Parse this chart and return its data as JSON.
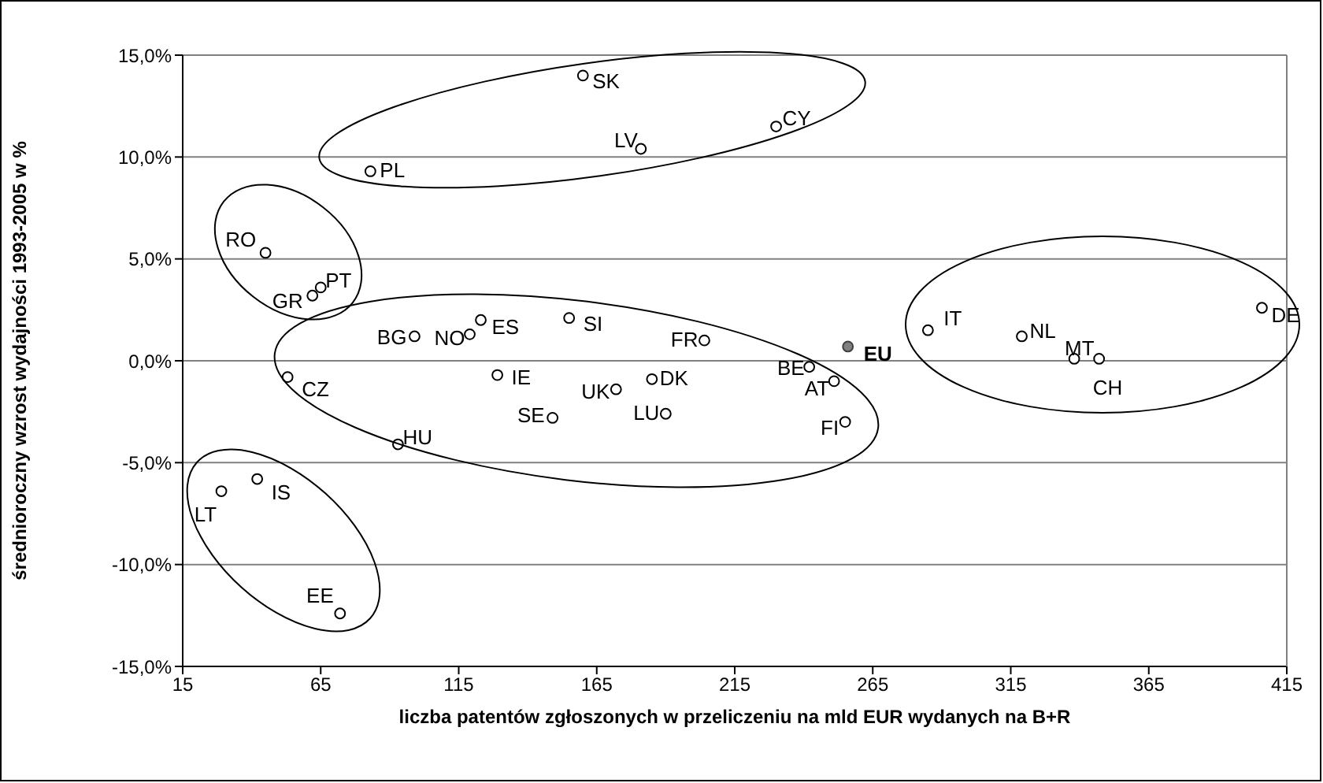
{
  "chart_data": {
    "type": "scatter",
    "xlabel": "liczba patentów zgłoszonych w przeliczeniu na mld EUR wydanych na B+R",
    "ylabel": "średnioroczny wzrost wydajności 1993-2005 w %",
    "xlim": [
      15,
      415
    ],
    "xticks": [
      15,
      65,
      115,
      165,
      215,
      265,
      315,
      365,
      415
    ],
    "ylim": [
      -15,
      15
    ],
    "yticks": [
      {
        "value": -15,
        "label": "-15,0%"
      },
      {
        "value": -10,
        "label": "-10,0%"
      },
      {
        "value": -5,
        "label": "-5,0%"
      },
      {
        "value": 0,
        "label": "0,0%"
      },
      {
        "value": 5,
        "label": "5,0%"
      },
      {
        "value": 10,
        "label": "10,0%"
      },
      {
        "value": 15,
        "label": "15,0%"
      }
    ],
    "grid": "y",
    "marker": "circle",
    "series": [
      {
        "color": "#000000",
        "x": [
          83,
          160,
          181,
          230,
          45,
          62,
          65,
          99,
          119,
          123,
          155,
          53,
          129,
          172,
          149,
          93,
          185,
          190,
          29,
          42,
          72,
          204,
          242,
          251,
          255,
          285,
          319,
          338,
          347,
          406
        ],
        "values": [
          9.3,
          14.0,
          10.4,
          11.5,
          5.3,
          3.2,
          3.6,
          1.2,
          1.3,
          2.0,
          2.1,
          -0.8,
          -0.7,
          -1.4,
          -2.8,
          -4.1,
          -0.9,
          -2.6,
          -6.4,
          -5.8,
          -12.4,
          1.0,
          -0.3,
          -1.0,
          -3.0,
          1.5,
          1.2,
          0.1,
          0.1,
          2.6
        ]
      },
      {
        "color": "#808080",
        "x": [
          256
        ],
        "values": [
          0.7
        ]
      }
    ],
    "annotations": [
      {
        "text": "PL",
        "x": 83,
        "y": 9.3
      },
      {
        "text": "SK",
        "x": 160,
        "y": 14.0
      },
      {
        "text": "LV",
        "x": 181,
        "y": 10.4
      },
      {
        "text": "CY",
        "x": 230,
        "y": 11.5
      },
      {
        "text": "RO",
        "x": 45,
        "y": 5.3
      },
      {
        "text": "GR",
        "x": 62,
        "y": 3.2
      },
      {
        "text": "PT",
        "x": 65,
        "y": 3.6
      },
      {
        "text": "BG",
        "x": 99,
        "y": 1.2
      },
      {
        "text": "NO",
        "x": 119,
        "y": 1.3
      },
      {
        "text": "ES",
        "x": 123,
        "y": 2.0
      },
      {
        "text": "SI",
        "x": 155,
        "y": 2.1
      },
      {
        "text": "CZ",
        "x": 53,
        "y": -0.8
      },
      {
        "text": "IE",
        "x": 129,
        "y": -0.7
      },
      {
        "text": "UK",
        "x": 172,
        "y": -1.4
      },
      {
        "text": "SE",
        "x": 149,
        "y": -2.8
      },
      {
        "text": "HU",
        "x": 93,
        "y": -4.1
      },
      {
        "text": "DK",
        "x": 185,
        "y": -0.9
      },
      {
        "text": "LU",
        "x": 190,
        "y": -2.6
      },
      {
        "text": "LT",
        "x": 29,
        "y": -6.4
      },
      {
        "text": "IS",
        "x": 42,
        "y": -5.8
      },
      {
        "text": "EE",
        "x": 72,
        "y": -12.4
      },
      {
        "text": "FR",
        "x": 204,
        "y": 1.0
      },
      {
        "text": "BE",
        "x": 242,
        "y": -0.3
      },
      {
        "text": "AT",
        "x": 251,
        "y": -1.0
      },
      {
        "text": "FI",
        "x": 255,
        "y": -3.0
      },
      {
        "text": "IT",
        "x": 285,
        "y": 1.5
      },
      {
        "text": "NL",
        "x": 319,
        "y": 1.2
      },
      {
        "text": "MT",
        "x": 338,
        "y": 0.1
      },
      {
        "text": "CH",
        "x": 347,
        "y": 0.1
      },
      {
        "text": "DE",
        "x": 406,
        "y": 2.6
      },
      {
        "text": "EU",
        "x": 256,
        "y": 0.7
      }
    ]
  }
}
